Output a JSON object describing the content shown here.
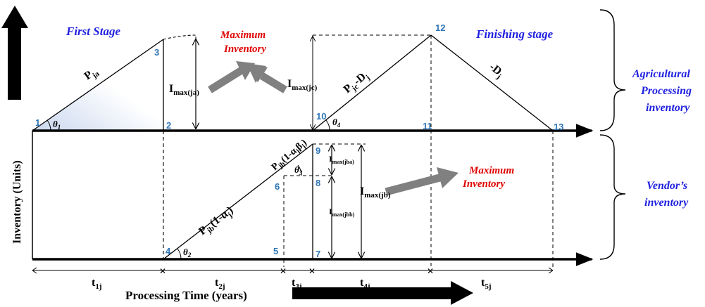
{
  "y_axis_label": "Inventory (Units)",
  "x_axis_label": "Processing Time (years)",
  "stage_labels": {
    "first_stage": "First Stage",
    "finishing_stage": "Finishing stage"
  },
  "max_inventory_label": {
    "line1": "Maximum",
    "line2": "Inventory"
  },
  "right_labels": {
    "agricultural": [
      "Agricultural",
      "Processing",
      "inventory"
    ],
    "vendor": [
      "Vendor’s",
      "inventory"
    ]
  },
  "points": [
    "1",
    "2",
    "3",
    "4",
    "5",
    "6",
    "7",
    "8",
    "9",
    "10",
    "11",
    "12",
    "13"
  ],
  "angles": {
    "theta1": {
      "sym": "θ",
      "sub": "1"
    },
    "theta2": {
      "sym": "θ",
      "sub": "2"
    },
    "theta3": {
      "sym": "θ",
      "sub": "3"
    },
    "theta4": {
      "sym": "θ",
      "sub": "4"
    }
  },
  "rates": {
    "pja": {
      "main": "P",
      "sub": "ja"
    },
    "pjc_dj": {
      "main": "P",
      "sub": "jc",
      "mid": "-D",
      "sub2": "j"
    },
    "neg_dj": {
      "main": "-D",
      "sub": "j"
    },
    "pjb_1_alpha": {
      "main": "P",
      "sub": "jb",
      "tail": "(1-α",
      "sub2": "j",
      "end": ")"
    },
    "pjb_1_alpha_beta": {
      "main": "P",
      "sub": "jb",
      "tail": "(1-α",
      "sub2": "j",
      "mid": "β",
      "sub3": "j",
      "end": ")"
    }
  },
  "imax": {
    "ja": {
      "main": "I",
      "sub": "max(ja)"
    },
    "jc": {
      "main": "I",
      "sub": "max(jc)"
    },
    "jba": {
      "main": "I",
      "sub": "max(jba)"
    },
    "jbb": {
      "main": "I",
      "sub": "max(jbb)"
    },
    "jb": {
      "main": "I",
      "sub": "max(jb)"
    }
  },
  "time_periods": [
    {
      "main": "t",
      "sub": "1j"
    },
    {
      "main": "t",
      "sub": "2j"
    },
    {
      "main": "t",
      "sub": "3j"
    },
    {
      "main": "t",
      "sub": "4j"
    },
    {
      "main": "t",
      "sub": "5j"
    }
  ],
  "colors": {
    "number_blue": "#2e75b6",
    "title_blue": "#1f1fe0",
    "title_red": "#e00000",
    "arrow_gray": "#808080",
    "gradient_blue": "#c9d7ee"
  }
}
